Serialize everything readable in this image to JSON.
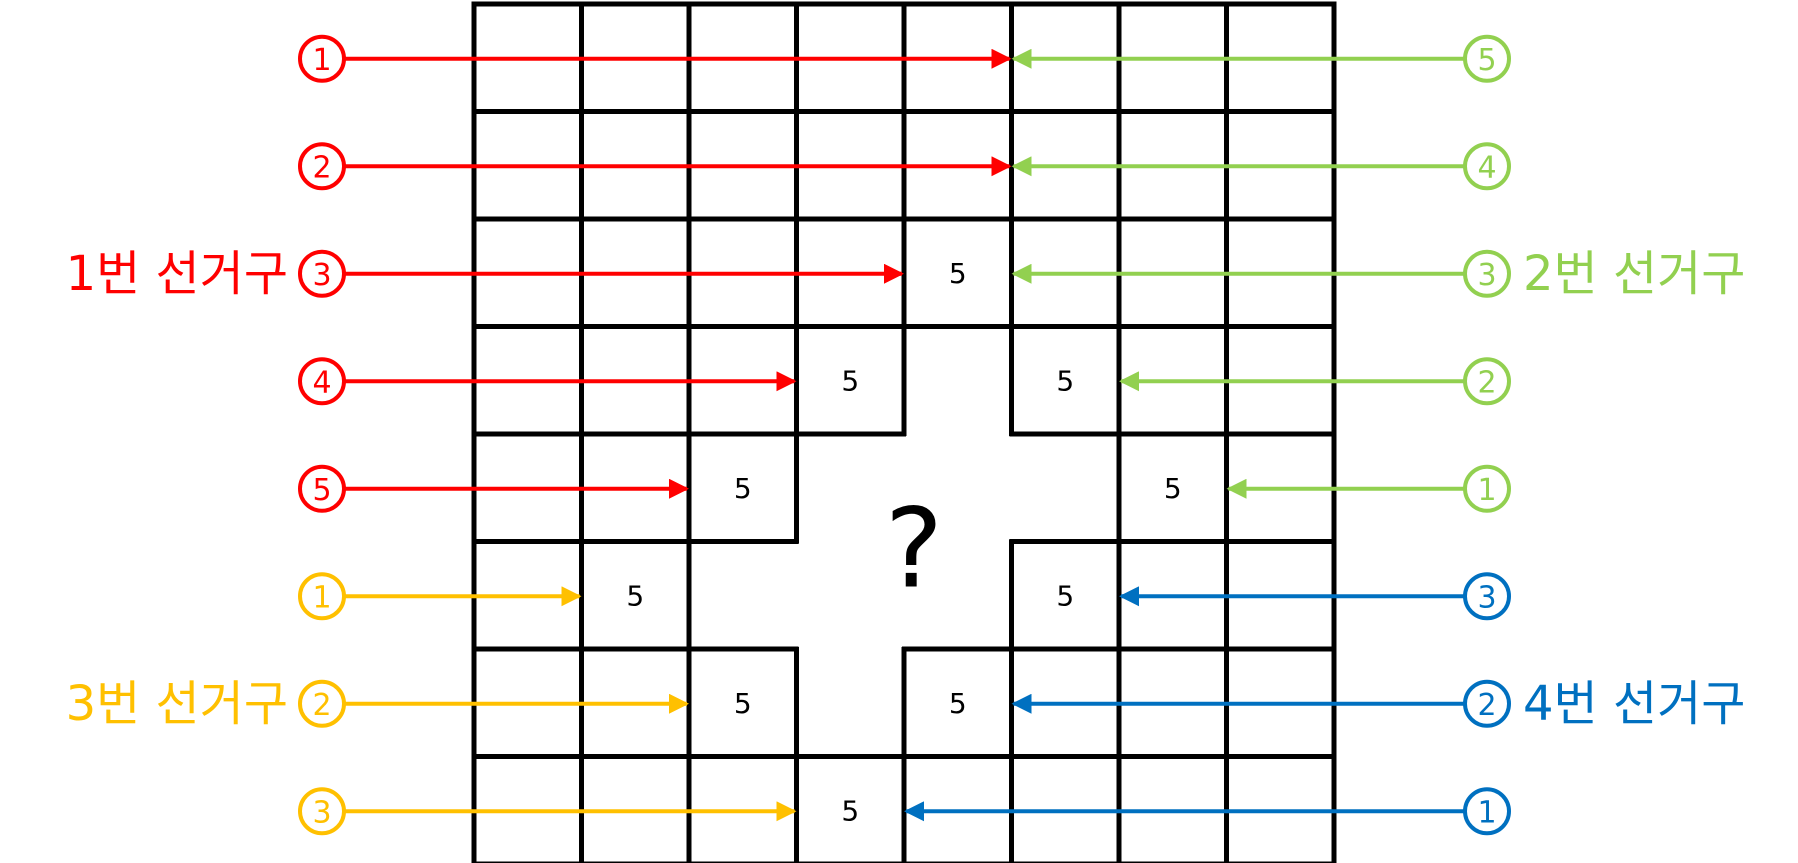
{
  "colors": {
    "district1": "#ff0000",
    "district2": "#92d050",
    "district3": "#ffc000",
    "district4": "#0070c0",
    "grid": "#000000"
  },
  "districts": [
    {
      "label": "1번 선거구",
      "side": "left",
      "color_key": "district1",
      "badges": [
        {
          "num": "1",
          "row": 0,
          "target_col": 5
        },
        {
          "num": "2",
          "row": 1,
          "target_col": 5
        },
        {
          "num": "3",
          "row": 2,
          "target_col": 4
        },
        {
          "num": "4",
          "row": 3,
          "target_col": 3
        },
        {
          "num": "5",
          "row": 4,
          "target_col": 2
        }
      ],
      "label_row": 2
    },
    {
      "label": "2번 선거구",
      "side": "right",
      "color_key": "district2",
      "badges": [
        {
          "num": "5",
          "row": 0,
          "target_col": 5
        },
        {
          "num": "4",
          "row": 1,
          "target_col": 5
        },
        {
          "num": "3",
          "row": 2,
          "target_col": 5
        },
        {
          "num": "2",
          "row": 3,
          "target_col": 6
        },
        {
          "num": "1",
          "row": 4,
          "target_col": 7
        }
      ],
      "label_row": 2
    },
    {
      "label": "3번 선거구",
      "side": "left",
      "color_key": "district3",
      "badges": [
        {
          "num": "1",
          "row": 5,
          "target_col": 1
        },
        {
          "num": "2",
          "row": 6,
          "target_col": 2
        },
        {
          "num": "3",
          "row": 7,
          "target_col": 3
        }
      ],
      "label_row": 6
    },
    {
      "label": "4번 선거구",
      "side": "right",
      "color_key": "district4",
      "badges": [
        {
          "num": "3",
          "row": 5,
          "target_col": 6
        },
        {
          "num": "2",
          "row": 6,
          "target_col": 5
        },
        {
          "num": "1",
          "row": 7,
          "target_col": 4
        }
      ],
      "label_row": 6
    }
  ],
  "grid": {
    "rows": 8,
    "cols": 8,
    "cells": [
      {
        "row": 2,
        "col": 4,
        "value": "5"
      },
      {
        "row": 3,
        "col": 3,
        "value": "5"
      },
      {
        "row": 3,
        "col": 5,
        "value": "5"
      },
      {
        "row": 4,
        "col": 2,
        "value": "5"
      },
      {
        "row": 4,
        "col": 6,
        "value": "5"
      },
      {
        "row": 5,
        "col": 1,
        "value": "5"
      },
      {
        "row": 5,
        "col": 5,
        "value": "5"
      },
      {
        "row": 6,
        "col": 2,
        "value": "5"
      },
      {
        "row": 6,
        "col": 4,
        "value": "5"
      },
      {
        "row": 7,
        "col": 3,
        "value": "5"
      }
    ],
    "unknown_region": [
      [
        3,
        4
      ],
      [
        4,
        3
      ],
      [
        4,
        4
      ],
      [
        4,
        5
      ],
      [
        5,
        2
      ],
      [
        5,
        3
      ],
      [
        5,
        4
      ],
      [
        6,
        3
      ]
    ],
    "unknown_symbol": "?"
  }
}
